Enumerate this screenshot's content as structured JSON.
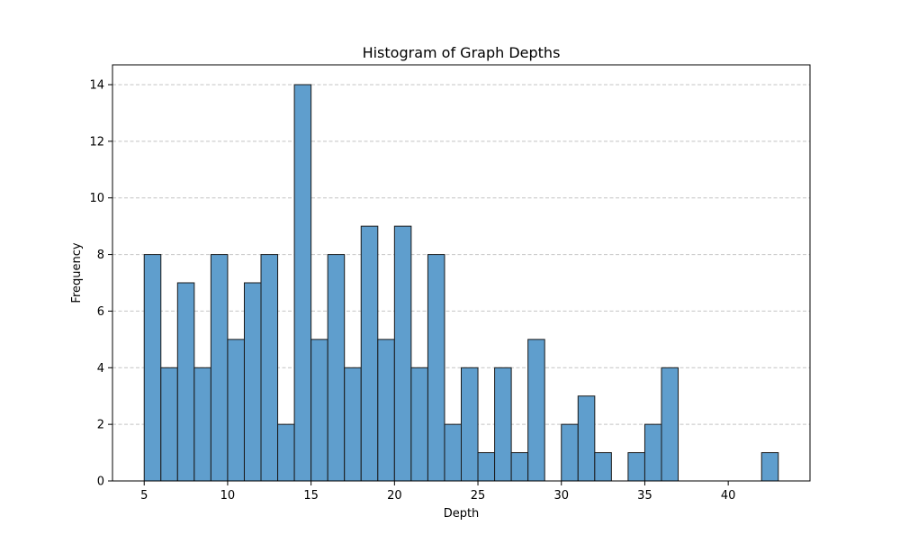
{
  "chart_data": {
    "type": "bar",
    "title": "Histogram of Graph Depths",
    "xlabel": "Depth",
    "ylabel": "Frequency",
    "xlim": [
      3.1,
      44.9
    ],
    "ylim": [
      0,
      14.7
    ],
    "x_ticks": [
      5,
      10,
      15,
      20,
      25,
      30,
      35,
      40
    ],
    "y_ticks": [
      0,
      2,
      4,
      6,
      8,
      10,
      12,
      14
    ],
    "grid": "y-dashed",
    "legend": "none",
    "bin_edges": [
      5,
      6,
      7,
      8,
      9,
      10,
      11,
      12,
      13,
      14,
      15,
      16,
      17,
      18,
      19,
      20,
      21,
      22,
      23,
      24,
      25,
      26,
      27,
      28,
      29,
      30,
      31,
      32,
      33,
      34,
      35,
      36,
      37,
      38,
      39,
      40,
      41,
      42,
      43
    ],
    "values": [
      8,
      4,
      7,
      4,
      8,
      5,
      7,
      8,
      2,
      14,
      5,
      8,
      4,
      9,
      5,
      9,
      4,
      8,
      2,
      4,
      1,
      4,
      1,
      5,
      0,
      2,
      3,
      1,
      0,
      1,
      2,
      4,
      0,
      0,
      0,
      0,
      0,
      1
    ],
    "bar_color": "#5f9ecd",
    "edge_color": "#1a1a1a",
    "grid_color": "#c4c4c4"
  }
}
